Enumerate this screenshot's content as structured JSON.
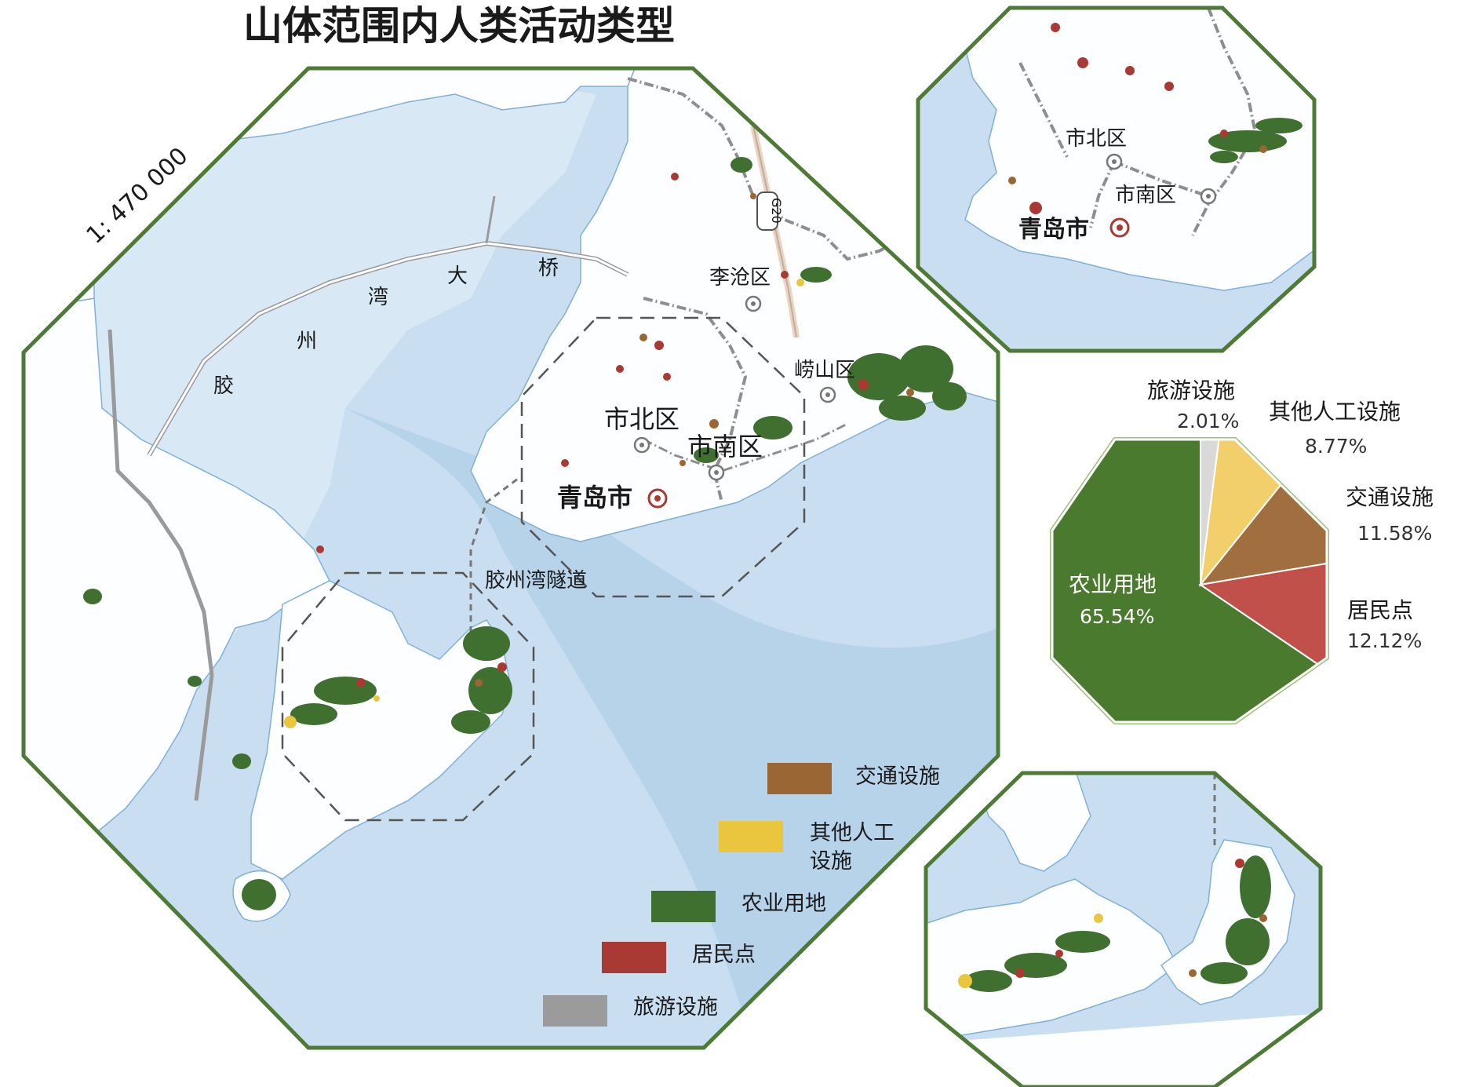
{
  "title": "山体范围内人类活动类型",
  "scale": "1: 470 000",
  "colors": {
    "sea_dark": "#c4dcef",
    "sea_light": "#d8e8f5",
    "land": "#fdfeff",
    "frame": "#4d7a35",
    "pie_frame": "#9cbf7a",
    "agri": "#4a7a2e",
    "residential": "#c2504a",
    "transport": "#a16f3f",
    "other_artificial": "#f2cf6b",
    "tourism": "#d9d9d9"
  },
  "map_labels": {
    "jiao": "胶",
    "zhou": "州",
    "wan": "湾",
    "da": "大",
    "qiao": "桥",
    "licang": "李沧区",
    "laoshan": "崂山区",
    "shibei": "市北区",
    "shinan": "市南区",
    "qingdao": "青岛市",
    "tunnel": "胶州湾隧道",
    "g20": "G20"
  },
  "inset_top_labels": {
    "shibei": "市北区",
    "shinan": "市南区",
    "qingdao": "青岛市"
  },
  "legend": [
    {
      "label": "交通设施",
      "color": "#9a6633"
    },
    {
      "label": "其他人工\n设施",
      "color": "#e9c63d"
    },
    {
      "label": "农业用地",
      "color": "#3f7030"
    },
    {
      "label": "居民点",
      "color": "#a83a33"
    },
    {
      "label": "旅游设施",
      "color": "#9b9b9b"
    }
  ],
  "chart_data": {
    "type": "pie",
    "title": "",
    "slices": [
      {
        "label": "农业用地",
        "value": 65.54,
        "pct": "65.54%",
        "color": "#4a7a2e"
      },
      {
        "label": "旅游设施",
        "value": 2.01,
        "pct": "2.01%",
        "color": "#d9d9d9"
      },
      {
        "label": "其他人工设施",
        "value": 8.77,
        "pct": "8.77%",
        "color": "#f2cf6b"
      },
      {
        "label": "交通设施",
        "value": 11.58,
        "pct": "11.58%",
        "color": "#a16f3f"
      },
      {
        "label": "居民点",
        "value": 12.12,
        "pct": "12.12%",
        "color": "#c2504a"
      }
    ]
  }
}
